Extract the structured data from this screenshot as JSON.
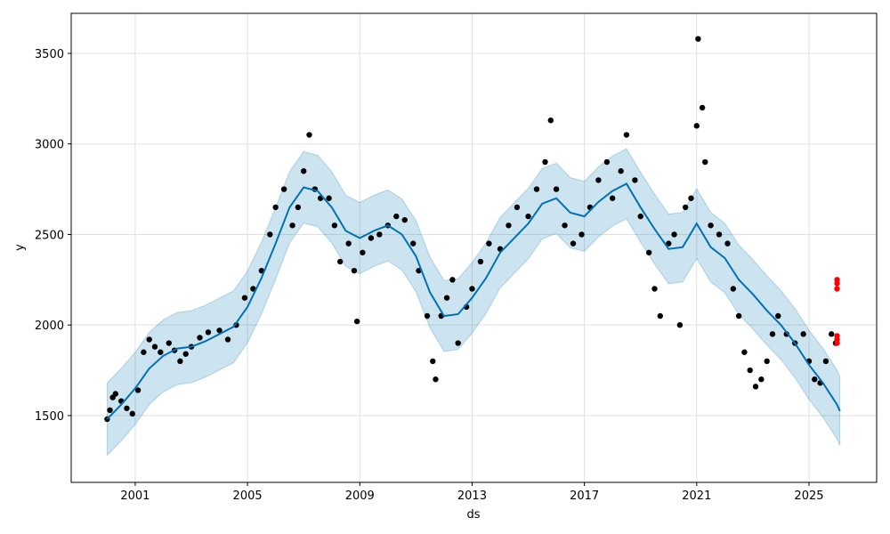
{
  "chart_data": {
    "type": "line",
    "title": "",
    "xlabel": "ds",
    "ylabel": "y",
    "xlim": [
      1998.72,
      2027.41
    ],
    "ylim": [
      1131,
      3721
    ],
    "grid": true,
    "x_ticks": [
      2001,
      2005,
      2009,
      2013,
      2017,
      2021,
      2025
    ],
    "x_tick_labels": [
      "2001",
      "2005",
      "2009",
      "2013",
      "2017",
      "2021",
      "2025"
    ],
    "y_ticks": [
      1500,
      2000,
      2500,
      3000,
      3500
    ],
    "y_tick_labels": [
      "1500",
      "2000",
      "2500",
      "3000",
      "3500"
    ],
    "colors": {
      "forecast": "#0072B2",
      "band": "#0072B2",
      "observed": "#000000",
      "test": "#ff0000",
      "grid": "#e0e0e0"
    },
    "forecast": [
      [
        2000.0,
        1480
      ],
      [
        2000.5,
        1560
      ],
      [
        2001.0,
        1650
      ],
      [
        2001.5,
        1760
      ],
      [
        2002.0,
        1830
      ],
      [
        2002.5,
        1870
      ],
      [
        2003.0,
        1880
      ],
      [
        2003.5,
        1910
      ],
      [
        2004.0,
        1950
      ],
      [
        2004.5,
        1990
      ],
      [
        2005.0,
        2100
      ],
      [
        2005.5,
        2260
      ],
      [
        2006.0,
        2450
      ],
      [
        2006.5,
        2650
      ],
      [
        2007.0,
        2760
      ],
      [
        2007.5,
        2740
      ],
      [
        2008.0,
        2650
      ],
      [
        2008.5,
        2520
      ],
      [
        2009.0,
        2480
      ],
      [
        2009.5,
        2520
      ],
      [
        2010.0,
        2550
      ],
      [
        2010.5,
        2500
      ],
      [
        2011.0,
        2380
      ],
      [
        2011.5,
        2180
      ],
      [
        2012.0,
        2050
      ],
      [
        2012.5,
        2060
      ],
      [
        2013.0,
        2150
      ],
      [
        2013.5,
        2260
      ],
      [
        2014.0,
        2400
      ],
      [
        2014.5,
        2480
      ],
      [
        2015.0,
        2560
      ],
      [
        2015.5,
        2670
      ],
      [
        2016.0,
        2700
      ],
      [
        2016.5,
        2620
      ],
      [
        2017.0,
        2600
      ],
      [
        2017.5,
        2680
      ],
      [
        2018.0,
        2740
      ],
      [
        2018.5,
        2780
      ],
      [
        2019.0,
        2650
      ],
      [
        2019.5,
        2530
      ],
      [
        2020.0,
        2420
      ],
      [
        2020.5,
        2430
      ],
      [
        2021.0,
        2560
      ],
      [
        2021.5,
        2430
      ],
      [
        2022.0,
        2370
      ],
      [
        2022.5,
        2250
      ],
      [
        2023.0,
        2170
      ],
      [
        2023.5,
        2080
      ],
      [
        2024.0,
        2000
      ],
      [
        2024.5,
        1900
      ],
      [
        2025.0,
        1780
      ],
      [
        2025.5,
        1680
      ],
      [
        2026.0,
        1560
      ],
      [
        2026.1,
        1525
      ]
    ],
    "band_halfwidth_start": 200,
    "band_halfwidth_end": 190,
    "observed": [
      [
        2000.0,
        1480
      ],
      [
        2000.1,
        1530
      ],
      [
        2000.2,
        1600
      ],
      [
        2000.3,
        1620
      ],
      [
        2000.5,
        1580
      ],
      [
        2000.7,
        1540
      ],
      [
        2000.9,
        1510
      ],
      [
        2001.1,
        1640
      ],
      [
        2001.3,
        1850
      ],
      [
        2001.5,
        1920
      ],
      [
        2001.7,
        1880
      ],
      [
        2001.9,
        1850
      ],
      [
        2002.2,
        1900
      ],
      [
        2002.4,
        1860
      ],
      [
        2002.6,
        1800
      ],
      [
        2002.8,
        1840
      ],
      [
        2003.0,
        1880
      ],
      [
        2003.3,
        1930
      ],
      [
        2003.6,
        1960
      ],
      [
        2004.0,
        1970
      ],
      [
        2004.3,
        1920
      ],
      [
        2004.6,
        2000
      ],
      [
        2004.9,
        2150
      ],
      [
        2005.2,
        2200
      ],
      [
        2005.5,
        2300
      ],
      [
        2005.8,
        2500
      ],
      [
        2006.0,
        2650
      ],
      [
        2006.3,
        2750
      ],
      [
        2006.6,
        2550
      ],
      [
        2006.8,
        2650
      ],
      [
        2007.0,
        2850
      ],
      [
        2007.2,
        3050
      ],
      [
        2007.4,
        2750
      ],
      [
        2007.6,
        2700
      ],
      [
        2007.9,
        2700
      ],
      [
        2008.1,
        2550
      ],
      [
        2008.3,
        2350
      ],
      [
        2008.6,
        2450
      ],
      [
        2008.8,
        2300
      ],
      [
        2008.9,
        2020
      ],
      [
        2009.1,
        2400
      ],
      [
        2009.4,
        2480
      ],
      [
        2009.7,
        2500
      ],
      [
        2010.0,
        2550
      ],
      [
        2010.3,
        2600
      ],
      [
        2010.6,
        2580
      ],
      [
        2010.9,
        2450
      ],
      [
        2011.1,
        2300
      ],
      [
        2011.4,
        2050
      ],
      [
        2011.6,
        1800
      ],
      [
        2011.7,
        1700
      ],
      [
        2011.9,
        2050
      ],
      [
        2012.1,
        2150
      ],
      [
        2012.3,
        2250
      ],
      [
        2012.5,
        1900
      ],
      [
        2012.8,
        2100
      ],
      [
        2013.0,
        2200
      ],
      [
        2013.3,
        2350
      ],
      [
        2013.6,
        2450
      ],
      [
        2014.0,
        2420
      ],
      [
        2014.3,
        2550
      ],
      [
        2014.6,
        2650
      ],
      [
        2015.0,
        2600
      ],
      [
        2015.3,
        2750
      ],
      [
        2015.6,
        2900
      ],
      [
        2015.8,
        3130
      ],
      [
        2016.0,
        2750
      ],
      [
        2016.3,
        2550
      ],
      [
        2016.6,
        2450
      ],
      [
        2016.9,
        2500
      ],
      [
        2017.2,
        2650
      ],
      [
        2017.5,
        2800
      ],
      [
        2017.8,
        2900
      ],
      [
        2018.0,
        2700
      ],
      [
        2018.3,
        2850
      ],
      [
        2018.5,
        3050
      ],
      [
        2018.8,
        2800
      ],
      [
        2019.0,
        2600
      ],
      [
        2019.3,
        2400
      ],
      [
        2019.5,
        2200
      ],
      [
        2019.7,
        2050
      ],
      [
        2020.0,
        2450
      ],
      [
        2020.2,
        2500
      ],
      [
        2020.4,
        2000
      ],
      [
        2020.6,
        2650
      ],
      [
        2020.8,
        2700
      ],
      [
        2021.0,
        3100
      ],
      [
        2021.05,
        3580
      ],
      [
        2021.2,
        3200
      ],
      [
        2021.3,
        2900
      ],
      [
        2021.5,
        2550
      ],
      [
        2021.8,
        2500
      ],
      [
        2022.1,
        2450
      ],
      [
        2022.3,
        2200
      ],
      [
        2022.5,
        2050
      ],
      [
        2022.7,
        1850
      ],
      [
        2022.9,
        1750
      ],
      [
        2023.1,
        1660
      ],
      [
        2023.3,
        1700
      ],
      [
        2023.5,
        1800
      ],
      [
        2023.7,
        1950
      ],
      [
        2023.9,
        2050
      ],
      [
        2024.2,
        1950
      ],
      [
        2024.5,
        1900
      ],
      [
        2024.8,
        1950
      ],
      [
        2025.0,
        1800
      ],
      [
        2025.2,
        1700
      ],
      [
        2025.4,
        1680
      ],
      [
        2025.6,
        1800
      ],
      [
        2025.8,
        1950
      ],
      [
        2025.95,
        1900
      ]
    ],
    "test_points": [
      [
        2026.0,
        2250
      ],
      [
        2026.0,
        2230
      ],
      [
        2026.0,
        2200
      ],
      [
        2026.0,
        1940
      ],
      [
        2026.0,
        1920
      ],
      [
        2026.0,
        1900
      ]
    ]
  }
}
